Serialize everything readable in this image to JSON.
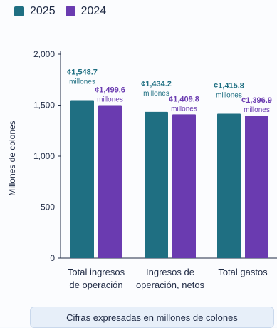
{
  "legend": [
    {
      "label": "2025",
      "color": "#1f6f82"
    },
    {
      "label": "2024",
      "color": "#6a3bb0"
    }
  ],
  "note": "Cifras expresadas en millones de colones",
  "chart_data": {
    "type": "bar",
    "ylabel": "Millones de colones",
    "ylim": [
      0,
      2000
    ],
    "yticks": [
      "0",
      "500",
      "1,000",
      "1,500",
      "2,000"
    ],
    "grid": false,
    "legend_position": "top-left",
    "categories": [
      [
        "Total ingresos",
        "de operación"
      ],
      [
        "Ingresos de",
        "operación, netos"
      ],
      [
        "Total gastos"
      ]
    ],
    "series": [
      {
        "name": "2025",
        "color": "#1f6f82",
        "values": [
          1548.7,
          1434.2,
          1415.8
        ],
        "labels": [
          [
            "¢1,548.7",
            "millones"
          ],
          [
            "¢1,434.2",
            "millones"
          ],
          [
            "¢1,415.8",
            "millones"
          ]
        ]
      },
      {
        "name": "2024",
        "color": "#6a3bb0",
        "values": [
          1499.6,
          1409.8,
          1396.9
        ],
        "labels": [
          [
            "¢1,499.6",
            "millones"
          ],
          [
            "¢1,409.8",
            "millones"
          ],
          [
            "¢1,396.9",
            "millones"
          ]
        ]
      }
    ]
  }
}
